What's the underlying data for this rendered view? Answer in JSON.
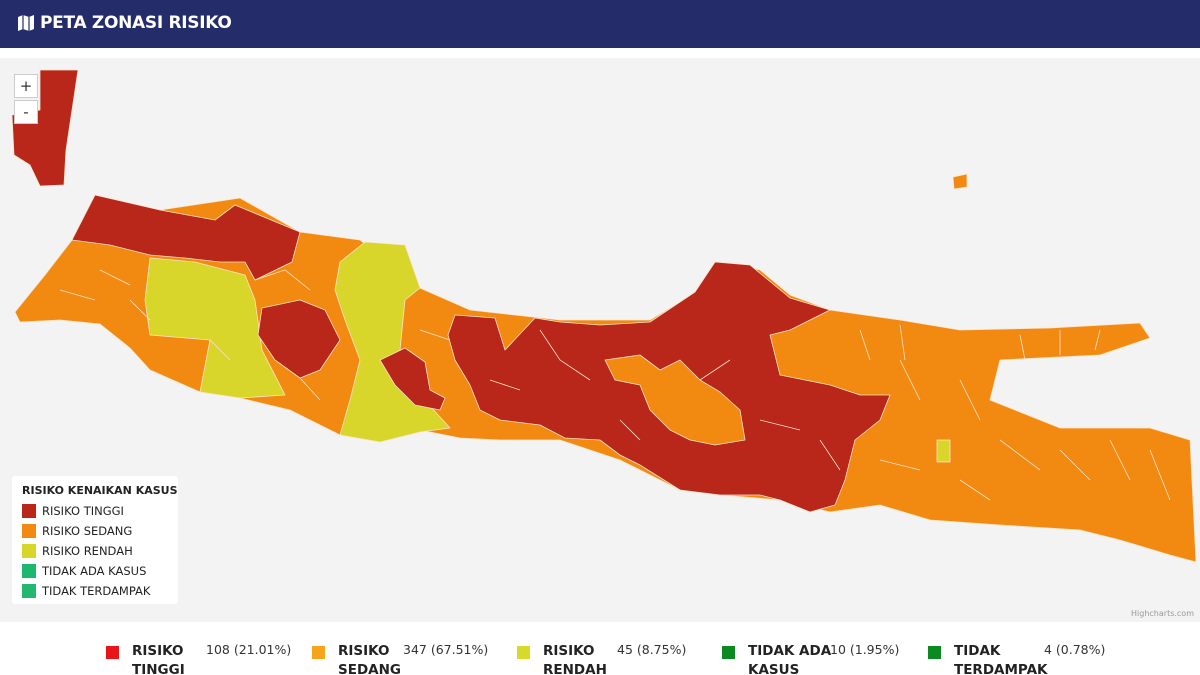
{
  "header": {
    "title": "PETA ZONASI RISIKO"
  },
  "map": {
    "zoom_in": "+",
    "zoom_out": "-",
    "credit": "Highcharts.com"
  },
  "legend": {
    "title": "RISIKO KENAIKAN KASUS",
    "items": [
      "RISIKO TINGGI",
      "RISIKO SEDANG",
      "RISIKO RENDAH",
      "TIDAK ADA KASUS",
      "TIDAK TERDAMPAK"
    ]
  },
  "stats": [
    {
      "label": "RISIKO TINGGI",
      "value": "108 (21.01%)"
    },
    {
      "label": "RISIKO SEDANG",
      "value": "347 (67.51%)"
    },
    {
      "label": "RISIKO RENDAH",
      "value": "45 (8.75%)"
    },
    {
      "label": "TIDAK ADA KASUS",
      "value": "10 (1.95%)"
    },
    {
      "label": "TIDAK TERDAMPAK",
      "value": "4 (0.78%)"
    }
  ]
}
